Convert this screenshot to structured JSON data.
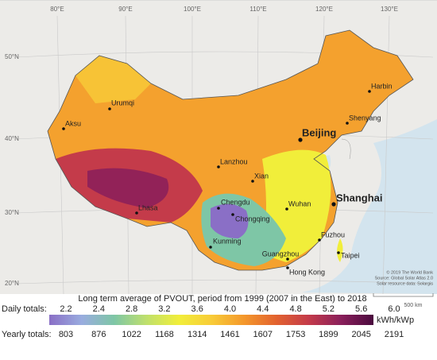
{
  "graticule": {
    "longitudes": [
      "80°E",
      "90°E",
      "100°E",
      "110°E",
      "120°E",
      "130°E"
    ],
    "latitudes": [
      "50°N",
      "40°N",
      "30°N",
      "20°N"
    ]
  },
  "cities": [
    {
      "label": "Urumqi"
    },
    {
      "label": "Aksu"
    },
    {
      "label": "Harbin"
    },
    {
      "label": "Shenyang"
    },
    {
      "label": "Beijing"
    },
    {
      "label": "Lanzhou"
    },
    {
      "label": "Xian"
    },
    {
      "label": "Chengdu"
    },
    {
      "label": "Chongqing"
    },
    {
      "label": "Lhasa"
    },
    {
      "label": "Wuhan"
    },
    {
      "label": "Shanghai"
    },
    {
      "label": "Kunming"
    },
    {
      "label": "Fuzhou"
    },
    {
      "label": "Taipei"
    },
    {
      "label": "Guangzhou"
    },
    {
      "label": "Hong Kong"
    }
  ],
  "credits": [
    "© 2019 The World Bank",
    "Source: Global Solar Atlas 2.0",
    "Solar resource data: Solargis"
  ],
  "scale_bar": "500 km",
  "legend": {
    "title": "Long term average of PVOUT, period from 1999 (2007 in the East) to 2018",
    "daily_label": "Daily totals:",
    "daily": [
      "2.2",
      "2.4",
      "2.8",
      "3.2",
      "3.6",
      "4.0",
      "4.4",
      "4.8",
      "5.2",
      "5.6",
      "6.0"
    ],
    "yearly_label": "Yearly totals:",
    "yearly": [
      "803",
      "876",
      "1022",
      "1168",
      "1314",
      "1461",
      "1607",
      "1753",
      "1899",
      "2045",
      "2191"
    ],
    "unit": "kWh/kWp"
  }
}
